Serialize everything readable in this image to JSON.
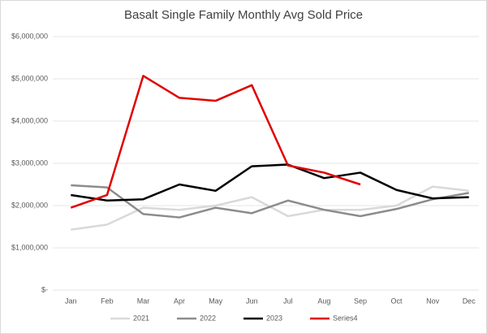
{
  "chart_data": {
    "type": "line",
    "title": "Basalt Single Family Monthly Avg Sold Price",
    "categories": [
      "Jan",
      "Feb",
      "Mar",
      "Apr",
      "May",
      "Jun",
      "Jul",
      "Aug",
      "Sep",
      "Oct",
      "Nov",
      "Dec"
    ],
    "series": [
      {
        "name": "2021",
        "color": "#d9d9d9",
        "values": [
          1430000,
          1550000,
          1950000,
          1900000,
          2000000,
          2200000,
          1750000,
          1900000,
          1900000,
          2000000,
          2450000,
          2350000
        ]
      },
      {
        "name": "2022",
        "color": "#8c8c8c",
        "values": [
          2480000,
          2430000,
          1800000,
          1720000,
          1950000,
          1820000,
          2120000,
          1900000,
          1750000,
          1920000,
          2150000,
          2300000
        ]
      },
      {
        "name": "2023",
        "color": "#000000",
        "values": [
          2250000,
          2120000,
          2150000,
          2500000,
          2350000,
          2930000,
          2970000,
          2650000,
          2780000,
          2370000,
          2170000,
          2200000
        ]
      },
      {
        "name": "Series4",
        "color": "#e00000",
        "values": [
          1950000,
          2250000,
          5070000,
          4550000,
          4480000,
          4850000,
          2950000,
          2780000,
          2500000,
          null,
          null,
          null
        ]
      }
    ],
    "ylim": [
      0,
      6000000
    ],
    "yticks": [
      {
        "value": 0,
        "label": "$-"
      },
      {
        "value": 1000000,
        "label": "$1,000,000"
      },
      {
        "value": 2000000,
        "label": "$2,000,000"
      },
      {
        "value": 3000000,
        "label": "$3,000,000"
      },
      {
        "value": 4000000,
        "label": "$4,000,000"
      },
      {
        "value": 5000000,
        "label": "$5,000,000"
      },
      {
        "value": 6000000,
        "label": "$6,000,000"
      }
    ],
    "grid": true,
    "legend": "bottom"
  }
}
